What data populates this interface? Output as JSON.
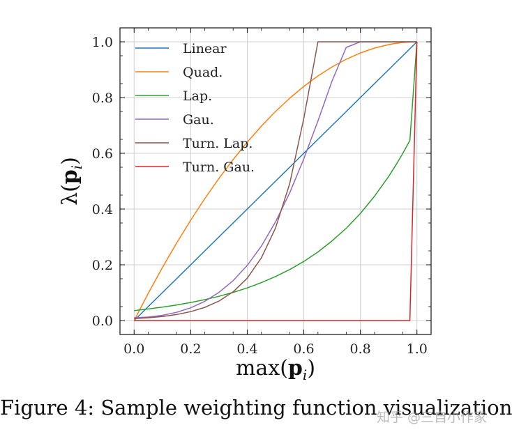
{
  "chart_data": {
    "type": "line",
    "title": "",
    "xlabel": "max(p_i)",
    "ylabel": "λ(p_i)",
    "xlabel_parts": {
      "pre": "max(",
      "bold": "p",
      "sub": "i",
      "post": ")"
    },
    "ylabel_parts": {
      "pre": "λ(",
      "bold": "p",
      "sub": "i",
      "post": ")"
    },
    "xlim": [
      -0.05,
      1.05
    ],
    "ylim": [
      -0.05,
      1.05
    ],
    "xticks": [
      0.0,
      0.2,
      0.4,
      0.6,
      0.8,
      1.0
    ],
    "yticks": [
      0.0,
      0.2,
      0.4,
      0.6,
      0.8,
      1.0
    ],
    "xtick_labels": [
      "0.0",
      "0.2",
      "0.4",
      "0.6",
      "0.8",
      "1.0"
    ],
    "ytick_labels": [
      "0.0",
      "0.2",
      "0.4",
      "0.6",
      "0.8",
      "1.0"
    ],
    "grid": true,
    "legend_position": "top-left",
    "x": [
      0.0,
      0.05,
      0.1,
      0.15,
      0.2,
      0.25,
      0.3,
      0.35,
      0.4,
      0.45,
      0.5,
      0.55,
      0.6,
      0.65,
      0.7,
      0.75,
      0.8,
      0.85,
      0.9,
      0.925,
      0.95,
      0.975,
      1.0
    ],
    "series": [
      {
        "name": "Linear",
        "color": "#1f77b4",
        "values": [
          0.0,
          0.05,
          0.1,
          0.15,
          0.2,
          0.25,
          0.3,
          0.35,
          0.4,
          0.45,
          0.5,
          0.55,
          0.6,
          0.65,
          0.7,
          0.75,
          0.8,
          0.85,
          0.9,
          0.925,
          0.95,
          0.975,
          1.0
        ]
      },
      {
        "name": "Quad.",
        "color": "#ff7f0e",
        "values": [
          0.0,
          0.0975,
          0.19,
          0.2775,
          0.36,
          0.4375,
          0.51,
          0.5775,
          0.64,
          0.6975,
          0.75,
          0.7975,
          0.84,
          0.8775,
          0.91,
          0.9375,
          0.96,
          0.9775,
          0.99,
          0.9944,
          0.9975,
          0.9994,
          1.0
        ]
      },
      {
        "name": "Lap.",
        "color": "#2ca02c",
        "values": [
          0.0357,
          0.0414,
          0.0481,
          0.0558,
          0.0647,
          0.0751,
          0.0871,
          0.101,
          0.117,
          0.136,
          0.158,
          0.183,
          0.212,
          0.246,
          0.286,
          0.331,
          0.384,
          0.446,
          0.517,
          0.557,
          0.6,
          0.646,
          1.0
        ]
      },
      {
        "name": "Gau.",
        "color": "#9467bd",
        "values": [
          0.01,
          0.0126,
          0.0187,
          0.0296,
          0.0458,
          0.069,
          0.101,
          0.143,
          0.198,
          0.267,
          0.354,
          0.458,
          0.58,
          0.716,
          0.86,
          0.98,
          1.0,
          1.0,
          1.0,
          1.0,
          1.0,
          1.0,
          1.0
        ]
      },
      {
        "name": "Turn. Lap.",
        "color": "#8c564b",
        "values": [
          0.0067,
          0.0099,
          0.0146,
          0.0216,
          0.0319,
          0.0472,
          0.0697,
          0.103,
          0.152,
          0.225,
          0.332,
          0.491,
          0.725,
          1.0,
          1.0,
          1.0,
          1.0,
          1.0,
          1.0,
          1.0,
          1.0,
          1.0,
          1.0
        ]
      },
      {
        "name": "Turn. Gau.",
        "color": "#d62728",
        "values": [
          0.0,
          0.0,
          0.0,
          0.0,
          0.0,
          0.0,
          0.0,
          0.0,
          0.0,
          0.0,
          0.0,
          0.0,
          0.0,
          0.0,
          0.0,
          0.0,
          0.0,
          0.0,
          0.0,
          0.0,
          0.0,
          0.0,
          1.0
        ]
      }
    ]
  },
  "caption": "Figure 4: Sample weighting function visualization",
  "watermark": "知乎 @三自小作家"
}
